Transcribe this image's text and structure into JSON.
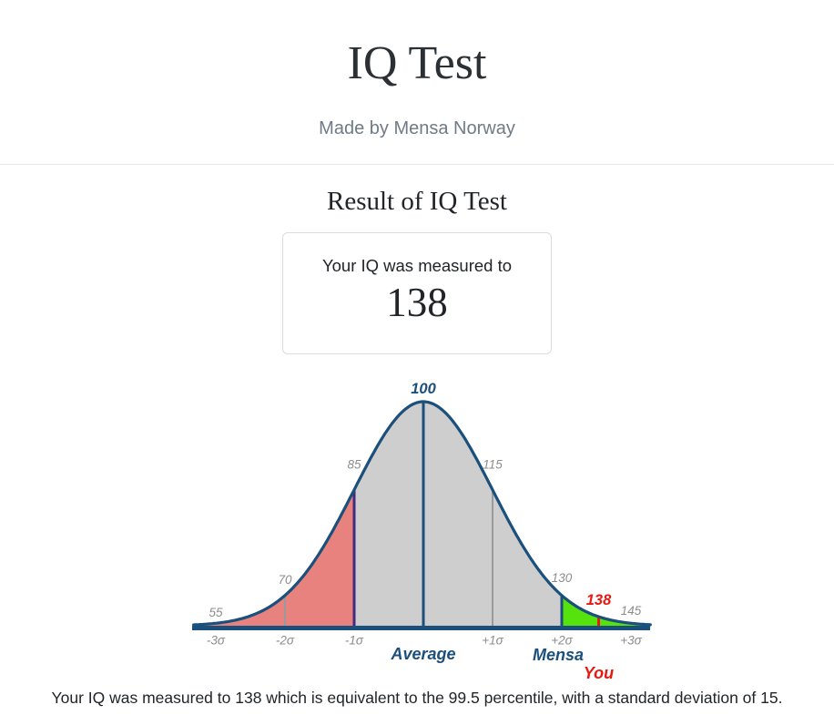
{
  "header": {
    "title": "IQ Test",
    "subtitle": "Made by Mensa Norway"
  },
  "result": {
    "heading": "Result of IQ Test",
    "card_label": "Your IQ was measured to",
    "card_value": "138"
  },
  "footer": {
    "summary": "Your IQ was measured to 138 which is equivalent to the 99.5 percentile, with a standard deviation of 15."
  },
  "colors": {
    "navy": "#1b4f7c",
    "gray_fill": "#cecece",
    "salmon": "#e8827f",
    "green": "#56e20c",
    "gray_line": "#9a9a9a",
    "gray_text": "#8d8d8d",
    "indigo": "#3f2b80",
    "red": "#ec1710"
  },
  "chart_data": {
    "type": "area",
    "title": "IQ bell curve (normal distribution)",
    "distribution": {
      "mean": 100,
      "std_dev": 15
    },
    "measured_iq": 138,
    "percentile": 99.5,
    "grid": false,
    "x_range_iq": [
      50.2,
      149.2
    ],
    "x_ticks": [
      {
        "z": -3,
        "label": "-3σ"
      },
      {
        "z": -2,
        "label": "-2σ"
      },
      {
        "z": -1,
        "label": "-1σ"
      },
      {
        "z": 1,
        "label": "+1σ"
      },
      {
        "z": 2,
        "label": "+2σ"
      },
      {
        "z": 3,
        "label": "+3σ"
      }
    ],
    "regions": [
      {
        "name": "below-average",
        "from_iq": 50,
        "to_iq": 85,
        "color": "salmon"
      },
      {
        "name": "average",
        "from_iq": 85,
        "to_iq": 130,
        "color": "gray_fill"
      },
      {
        "name": "mensa",
        "from_iq": 130,
        "to_iq": 150,
        "color": "green"
      }
    ],
    "markers": [
      {
        "iq": 70,
        "color": "gray_line",
        "width": 2
      },
      {
        "iq": 85,
        "color": "indigo",
        "width": 3
      },
      {
        "iq": 100,
        "color": "navy",
        "width": 3
      },
      {
        "iq": 115,
        "color": "gray_line",
        "width": 2
      },
      {
        "iq": 130,
        "color": "navy",
        "width": 3
      },
      {
        "iq": 138,
        "color": "red",
        "width": 3
      }
    ],
    "value_labels": [
      {
        "iq": 55,
        "text": "55",
        "dy": -12,
        "style": "muted"
      },
      {
        "iq": 70,
        "text": "70",
        "dy": -17,
        "style": "muted"
      },
      {
        "iq": 85,
        "text": "85",
        "dy": -28,
        "style": "muted"
      },
      {
        "iq": 100,
        "text": "100",
        "dy": -14,
        "style": "navy-bold"
      },
      {
        "iq": 115,
        "text": "115",
        "dy": -28,
        "style": "muted"
      },
      {
        "iq": 130,
        "text": "130",
        "dy": -19,
        "style": "muted"
      },
      {
        "iq": 138,
        "text": "138",
        "dy": -18,
        "style": "red-bold"
      },
      {
        "iq": 145,
        "text": "145",
        "dy": -14,
        "style": "muted"
      }
    ],
    "annotations": [
      {
        "text": "Average",
        "iq": 100,
        "y": 309,
        "style": "navy-anno"
      },
      {
        "text": "Mensa",
        "iq": 130,
        "dx": -4,
        "y": 310,
        "style": "navy-anno"
      },
      {
        "text": "You",
        "iq": 138,
        "y": 330,
        "style": "red-anno"
      }
    ]
  }
}
